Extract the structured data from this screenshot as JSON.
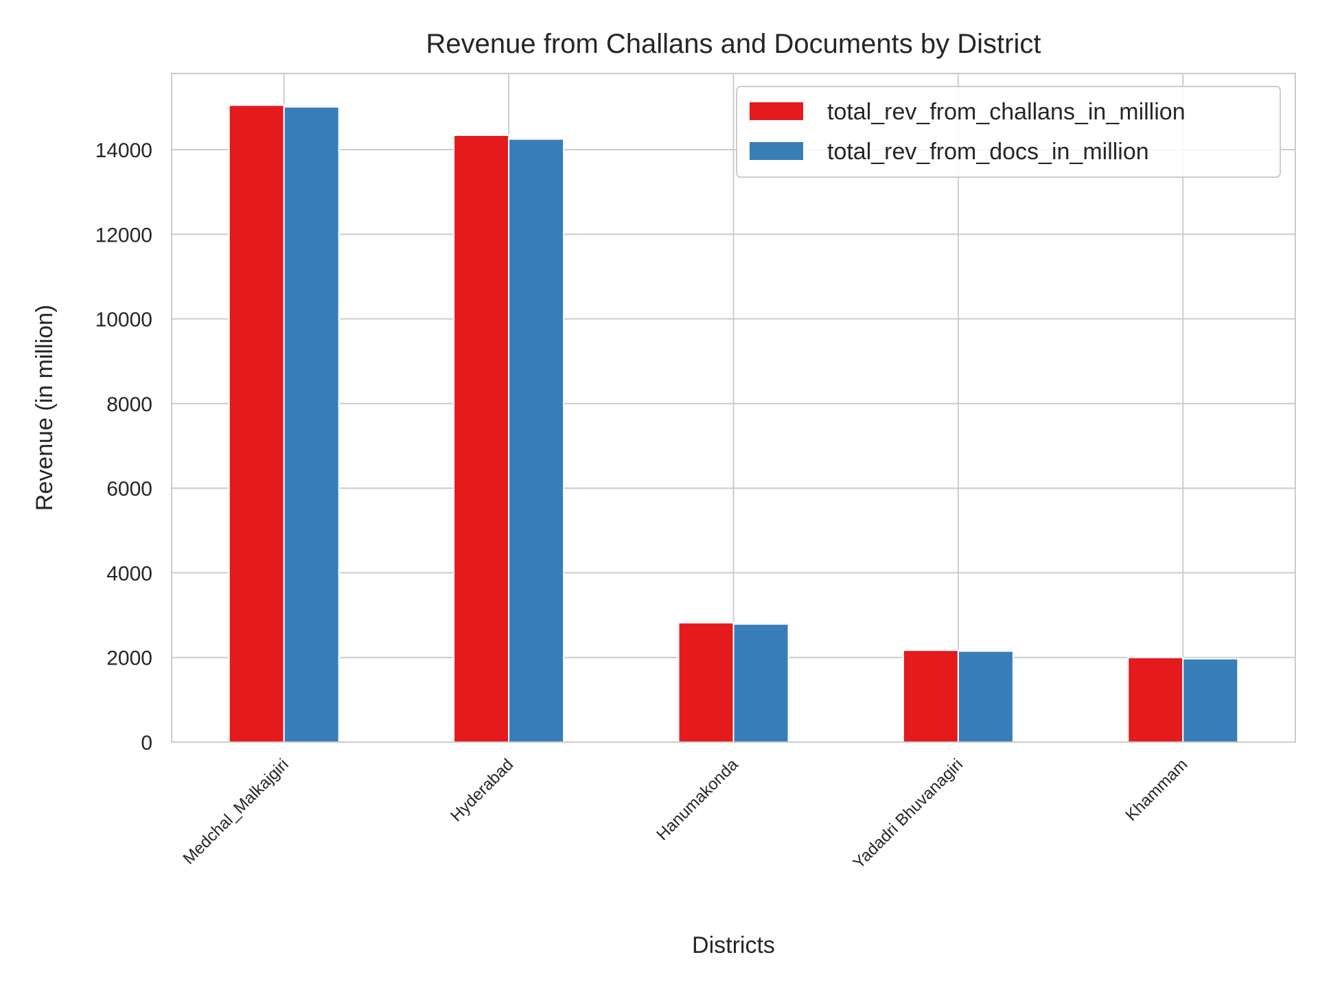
{
  "chart_data": {
    "type": "bar",
    "title": "Revenue from Challans and Documents by District",
    "xlabel": "Districts",
    "ylabel": "Revenue (in million)",
    "categories": [
      "Medchal_Malkajgiri",
      "Hyderabad",
      "Hanumakonda",
      "Yadadri Bhuvanagiri",
      "Khammam"
    ],
    "series": [
      {
        "name": "total_rev_from_challans_in_million",
        "color": "#e41a1c",
        "values": [
          15050,
          14340,
          2820,
          2170,
          2000
        ]
      },
      {
        "name": "total_rev_from_docs_in_million",
        "color": "#377eb8",
        "values": [
          15010,
          14250,
          2790,
          2150,
          1970
        ]
      }
    ],
    "ylim": [
      0,
      15800
    ],
    "yticks": [
      0,
      2000,
      4000,
      6000,
      8000,
      10000,
      12000,
      14000
    ],
    "ytick_labels": [
      "0",
      "2000",
      "4000",
      "6000",
      "8000",
      "10000",
      "12000",
      "14000"
    ],
    "grid": true,
    "legend_position": "top-right",
    "colors": {
      "grid": "#cccccc",
      "axes_edge": "#cccccc",
      "text": "#262626",
      "background": "#ffffff"
    }
  }
}
